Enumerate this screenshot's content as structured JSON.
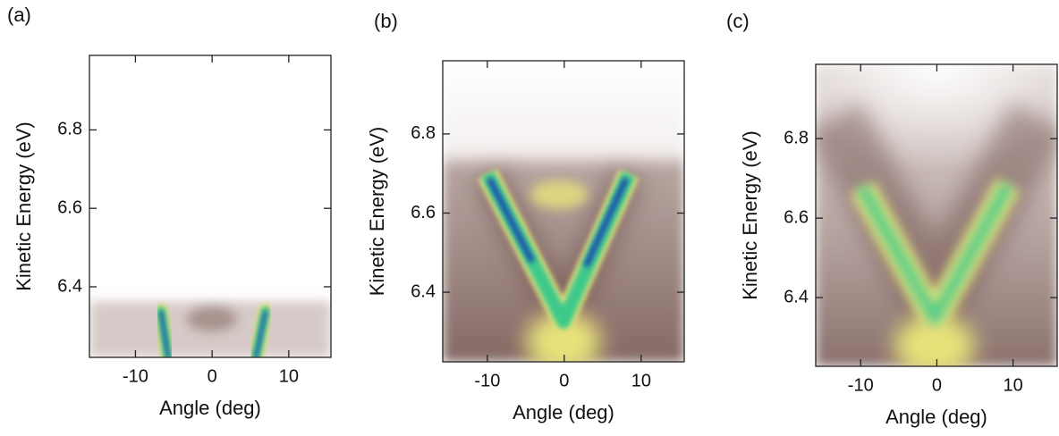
{
  "chart_data": [
    {
      "type": "image",
      "panel_label": "(a)",
      "xlabel": "Angle (deg)",
      "ylabel": "Kinetic Energy (eV)",
      "xlim": [
        -16,
        15.5
      ],
      "ylim": [
        6.22,
        6.99
      ],
      "xticks": [
        -10,
        0,
        10
      ],
      "yticks": [
        6.4,
        6.6,
        6.8
      ]
    },
    {
      "type": "image",
      "panel_label": "(b)",
      "xlabel": "Angle (deg)",
      "ylabel": "Kinetic Energy (eV)",
      "xlim": [
        -15.8,
        15.6
      ],
      "ylim": [
        6.224,
        6.985
      ],
      "xticks": [
        -10,
        0,
        10
      ],
      "yticks": [
        6.4,
        6.6,
        6.8
      ]
    },
    {
      "type": "image",
      "panel_label": "(c)",
      "xlabel": "Angle (deg)",
      "ylabel": "Kinetic Energy (eV)",
      "xlim": [
        -15.9,
        15.8
      ],
      "ylim": [
        6.227,
        6.987
      ],
      "xticks": [
        -10,
        0,
        10
      ],
      "yticks": [
        6.4,
        6.6,
        6.8
      ]
    }
  ]
}
